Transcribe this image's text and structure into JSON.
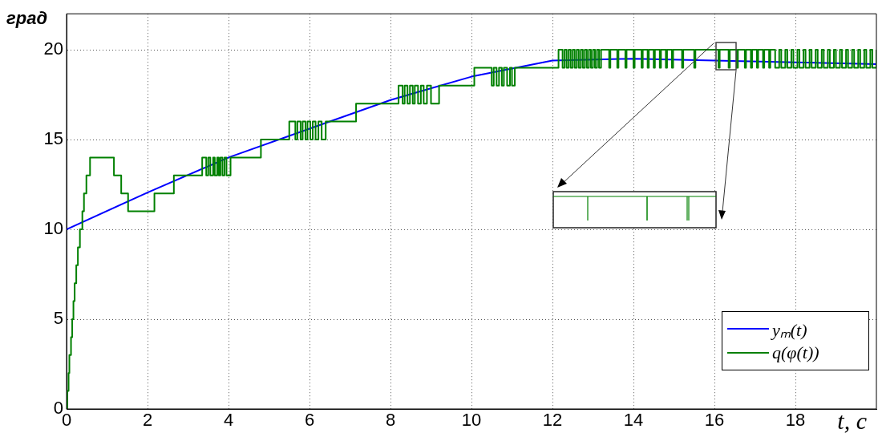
{
  "chart_data": {
    "type": "line",
    "xlabel": "t, c",
    "ylabel": "град",
    "xlim": [
      0,
      20
    ],
    "ylim": [
      0,
      22
    ],
    "xticks": [
      0,
      2,
      4,
      6,
      8,
      10,
      12,
      14,
      16,
      18
    ],
    "yticks": [
      0,
      5,
      10,
      15,
      20
    ],
    "grid": true,
    "legend": "bottom right",
    "marker": "none",
    "line_style": "solid",
    "series": [
      {
        "name": "yₘ(t)",
        "type": "line",
        "color": "#0000ff",
        "x": [
          0,
          2,
          4,
          6,
          8,
          10,
          12,
          14,
          16,
          18,
          20
        ],
        "values": [
          10,
          12.05,
          14,
          15.6,
          17.2,
          18.5,
          19.4,
          19.5,
          19.4,
          19.3,
          19.2
        ]
      },
      {
        "name": "q(φ(t))",
        "type": "step",
        "color": "#008000",
        "x": [
          0,
          0.02,
          0.05,
          0.07,
          0.11,
          0.14,
          0.17,
          0.2,
          0.24,
          0.28,
          0.33,
          0.39,
          0.43,
          0.49,
          0.58,
          1.17,
          1.35,
          1.52,
          2.17,
          2.65,
          3.35,
          3.45,
          3.5,
          3.55,
          3.62,
          3.66,
          3.72,
          3.76,
          3.8,
          3.85,
          3.9,
          3.95,
          4.05,
          4.8,
          5.5,
          5.65,
          5.7,
          5.78,
          5.83,
          5.9,
          5.95,
          6.02,
          6.08,
          6.15,
          6.22,
          6.3,
          6.4,
          7.15,
          8.2,
          8.3,
          8.35,
          8.42,
          8.48,
          8.55,
          8.6,
          8.68,
          8.75,
          8.82,
          8.9,
          9,
          9.2,
          10.07,
          10.5,
          10.55,
          10.62,
          10.68,
          10.75,
          10.8,
          10.88,
          10.95,
          11,
          11.07,
          12.15,
          12.25,
          12.3,
          12.35,
          12.4,
          12.45,
          12.5,
          12.55,
          12.6,
          12.65,
          12.7,
          12.75,
          12.8,
          12.85,
          12.9,
          12.95,
          13,
          13.05,
          13.1,
          13.15,
          13.2,
          13.4,
          13.43,
          13.6,
          13.63,
          13.8,
          13.83,
          14,
          14.03,
          14.2,
          14.23,
          14.35,
          14.38,
          14.5,
          14.53,
          14.65,
          14.68,
          14.8,
          14.83,
          14.95,
          14.98,
          15.2,
          15.23,
          15.5,
          15.53,
          16.1,
          16.13,
          16.35,
          16.38,
          16.55,
          16.58,
          16.75,
          16.78,
          16.9,
          16.93,
          17.05,
          17.08,
          17.2,
          17.23,
          17.35,
          17.38,
          17.5,
          17.6,
          17.65,
          17.75,
          17.8,
          17.9,
          17.95,
          18.05,
          18.1,
          18.2,
          18.25,
          18.35,
          18.4,
          18.5,
          18.55,
          18.65,
          18.7,
          18.8,
          18.85,
          18.95,
          19,
          19.1,
          19.15,
          19.25,
          19.3,
          19.4,
          19.45,
          19.55,
          19.6,
          19.7,
          19.75,
          19.85,
          19.9,
          20
        ],
        "values": [
          0,
          1,
          2,
          3,
          4,
          5,
          6,
          7,
          8,
          9,
          10,
          11,
          12,
          13,
          14,
          13,
          12,
          11,
          12,
          13,
          14,
          13,
          14,
          13,
          14,
          13,
          14,
          13,
          14,
          13,
          14,
          13,
          14,
          15,
          16,
          15,
          16,
          15,
          16,
          15,
          16,
          15,
          16,
          15,
          16,
          15,
          16,
          17,
          18,
          17,
          18,
          17,
          18,
          17,
          18,
          17,
          18,
          17,
          18,
          17,
          18,
          19,
          18,
          19,
          18,
          19,
          18,
          19,
          18,
          19,
          18,
          19,
          20,
          19,
          20,
          19,
          20,
          19,
          20,
          19,
          20,
          19,
          20,
          19,
          20,
          19,
          20,
          19,
          20,
          19,
          20,
          19,
          20,
          19,
          20,
          19,
          20,
          19,
          20,
          19,
          20,
          19,
          20,
          19,
          20,
          19,
          20,
          19,
          20,
          19,
          20,
          19,
          20,
          19,
          20,
          19,
          20,
          19,
          20,
          19,
          20,
          19,
          20,
          19,
          20,
          19,
          20,
          19,
          20,
          19,
          20,
          19,
          20,
          19,
          20,
          19,
          20,
          19,
          20,
          19,
          20,
          19,
          20,
          19,
          20,
          19,
          20,
          19,
          20,
          19,
          20,
          19,
          20,
          19,
          20,
          19,
          20,
          19,
          20,
          19,
          20,
          19,
          20,
          19,
          20,
          19,
          20
        ]
      }
    ]
  }
}
